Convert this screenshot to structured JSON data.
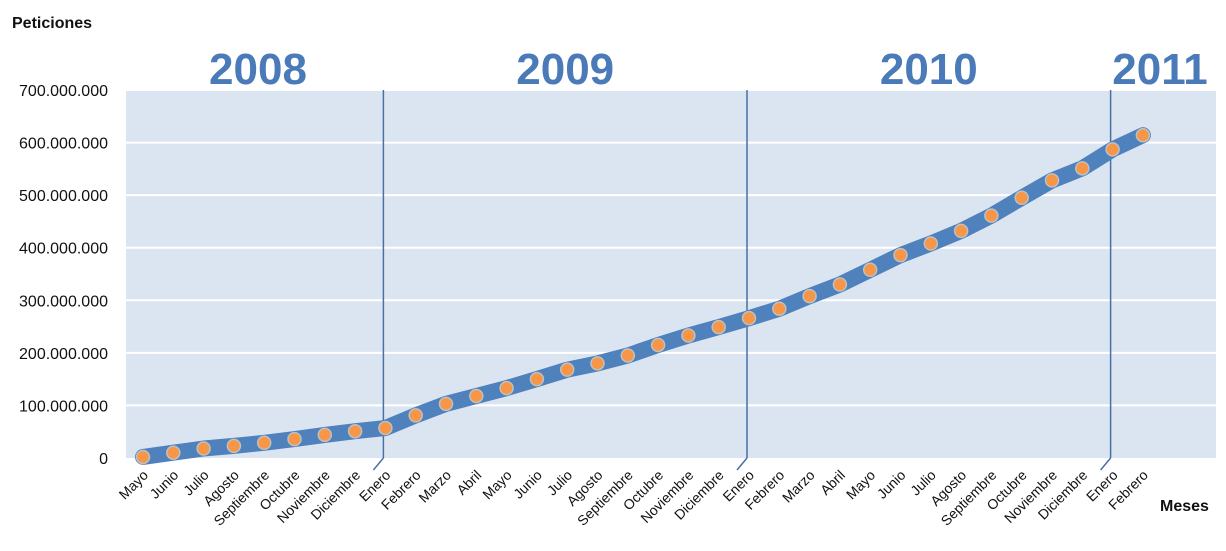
{
  "chart_data": {
    "type": "line",
    "ylabel": "Peticiones",
    "xlabel": "Meses",
    "ylim": [
      0,
      700000000
    ],
    "yticks": [
      {
        "value": 0,
        "label": "0"
      },
      {
        "value": 100000000,
        "label": "100.000.000"
      },
      {
        "value": 200000000,
        "label": "200.000.000"
      },
      {
        "value": 300000000,
        "label": "300.000.000"
      },
      {
        "value": 400000000,
        "label": "400.000.000"
      },
      {
        "value": 500000000,
        "label": "500.000.000"
      },
      {
        "value": 600000000,
        "label": "600.000.000"
      },
      {
        "value": 700000000,
        "label": "700.000.000"
      }
    ],
    "categories": [
      "Mayo",
      "Junio",
      "Julio",
      "Agosto",
      "Septiembre",
      "Octubre",
      "Noviembre",
      "Diciembre",
      "Enero",
      "Febrero",
      "Marzo",
      "Abril",
      "Mayo",
      "Junio",
      "Julio",
      "Agosto",
      "Septiembre",
      "Octubre",
      "Noviembre",
      "Diciembre",
      "Enero",
      "Febrero",
      "Marzo",
      "Abril",
      "Mayo",
      "Junio",
      "Julio",
      "Agosto",
      "Septiembre",
      "Octubre",
      "Noviembre",
      "Diciembre",
      "Enero",
      "Febrero"
    ],
    "values": [
      2000000,
      10000000,
      18000000,
      23000000,
      29000000,
      36000000,
      44000000,
      51000000,
      57000000,
      81000000,
      103000000,
      118000000,
      133000000,
      150000000,
      168000000,
      180000000,
      195000000,
      215000000,
      233000000,
      249000000,
      266000000,
      284000000,
      308000000,
      330000000,
      358000000,
      386000000,
      408000000,
      432000000,
      461000000,
      495000000,
      528000000,
      551000000,
      587000000,
      614000000
    ],
    "year_groups": [
      {
        "label": "2008",
        "start": 0
      },
      {
        "label": "2009",
        "start": 8
      },
      {
        "label": "2010",
        "start": 20
      },
      {
        "label": "2011",
        "start": 32
      }
    ],
    "colors": {
      "plot_bg": "#dbe5f1",
      "line": "#4f81bd",
      "marker_fill": "#f79646",
      "marker_stroke": "#c0c0c0",
      "year_text": "#4a7ab8",
      "divider": "#4a6fa5"
    },
    "grid": true
  }
}
